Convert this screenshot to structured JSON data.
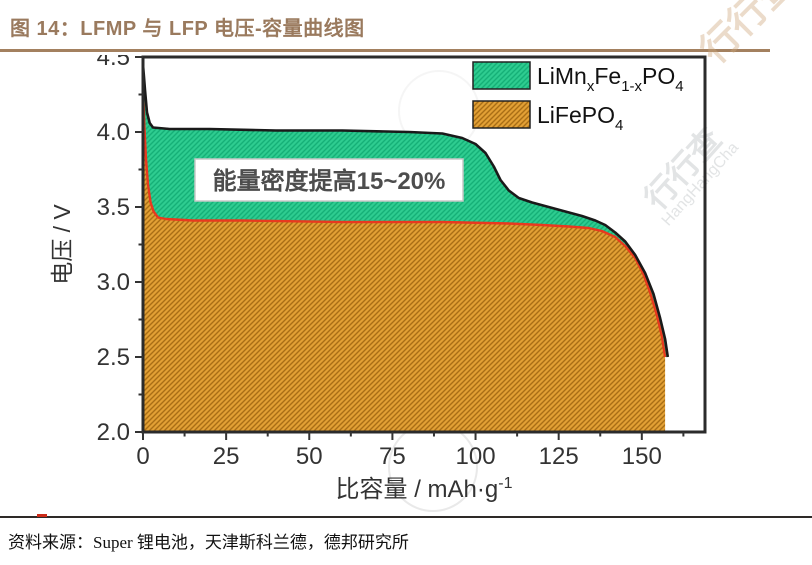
{
  "page": {
    "title": "图 14：LFMP 与 LFP 电压-容量曲线图",
    "source": "资料来源：Super 锂电池，天津斯科兰德，德邦研究所"
  },
  "watermark": {
    "brand": "行行查",
    "brand_latin": "HangHangCha"
  },
  "colors": {
    "title_text": "#9a7a5e",
    "title_rule": "#a3805f",
    "lfmp_fill": "#2ecc90",
    "lfmp_hatch": "#15b077",
    "lfp_fill": "#e2a035",
    "lfp_hatch": "#a96e15",
    "lfmp_line": "#1a1a1a",
    "lfp_line": "#e8391f",
    "axis": "#333333",
    "frame": "#2b2b2b",
    "annotation_text": "#4d4d4d"
  },
  "chart_data": {
    "type": "area",
    "xlabel_segments": [
      {
        "t": "比容量 / mAh·g"
      },
      {
        "t": "-1",
        "sup": true
      }
    ],
    "ylabel": "电压 / V",
    "xlim": [
      0,
      169
    ],
    "ylim": [
      2.0,
      4.5
    ],
    "x_major_ticks": [
      0,
      25,
      50,
      75,
      100,
      125,
      150
    ],
    "x_minor_ticks": [
      12.5,
      37.5,
      62.5,
      87.5,
      112.5,
      137.5,
      162.5
    ],
    "y_major_ticks": [
      2.0,
      2.5,
      3.0,
      3.5,
      4.0,
      4.5
    ],
    "y_minor_ticks": [
      2.25,
      2.75,
      3.25,
      3.75,
      4.25
    ],
    "grid": false,
    "legend_position": "top-right-inside",
    "annotation": {
      "text": "能量密度提高15~20%"
    },
    "legend": [
      {
        "series": "LFMP",
        "segments": [
          {
            "t": "LiMn"
          },
          {
            "t": "x",
            "sub": true
          },
          {
            "t": "Fe"
          },
          {
            "t": "1-x",
            "sub": true
          },
          {
            "t": "PO"
          },
          {
            "t": "4",
            "sub": true
          }
        ]
      },
      {
        "series": "LFP",
        "segments": [
          {
            "t": "LiFePO"
          },
          {
            "t": "4",
            "sub": true
          }
        ]
      }
    ],
    "series": [
      {
        "name": "LiMnxFe1-xPO4",
        "points": [
          [
            0,
            4.45
          ],
          [
            0.6,
            4.28
          ],
          [
            1.2,
            4.13
          ],
          [
            2,
            4.06
          ],
          [
            3,
            4.03
          ],
          [
            8,
            4.02
          ],
          [
            20,
            4.02
          ],
          [
            40,
            4.01
          ],
          [
            60,
            4.01
          ],
          [
            80,
            4.0
          ],
          [
            90,
            3.99
          ],
          [
            96,
            3.96
          ],
          [
            100,
            3.92
          ],
          [
            103,
            3.86
          ],
          [
            105.5,
            3.77
          ],
          [
            107.5,
            3.68
          ],
          [
            110,
            3.61
          ],
          [
            113,
            3.56
          ],
          [
            117,
            3.53
          ],
          [
            122,
            3.5
          ],
          [
            127,
            3.47
          ],
          [
            132,
            3.44
          ],
          [
            136,
            3.41
          ],
          [
            139,
            3.38
          ],
          [
            142,
            3.33
          ],
          [
            145,
            3.27
          ],
          [
            148,
            3.18
          ],
          [
            151,
            3.06
          ],
          [
            153.5,
            2.92
          ],
          [
            155.5,
            2.76
          ],
          [
            157,
            2.62
          ],
          [
            157.8,
            2.5
          ]
        ]
      },
      {
        "name": "LiFePO4",
        "points": [
          [
            0,
            4.3
          ],
          [
            0.4,
            4.05
          ],
          [
            0.9,
            3.82
          ],
          [
            1.5,
            3.65
          ],
          [
            2.3,
            3.53
          ],
          [
            3.2,
            3.47
          ],
          [
            4.5,
            3.43
          ],
          [
            7,
            3.42
          ],
          [
            15,
            3.41
          ],
          [
            30,
            3.41
          ],
          [
            60,
            3.4
          ],
          [
            90,
            3.4
          ],
          [
            110,
            3.39
          ],
          [
            120,
            3.38
          ],
          [
            128,
            3.37
          ],
          [
            134,
            3.36
          ],
          [
            138,
            3.34
          ],
          [
            142,
            3.3
          ],
          [
            145,
            3.24
          ],
          [
            148,
            3.16
          ],
          [
            150.5,
            3.05
          ],
          [
            152.5,
            2.93
          ],
          [
            154.5,
            2.78
          ],
          [
            156,
            2.64
          ],
          [
            157,
            2.5
          ]
        ]
      }
    ]
  }
}
